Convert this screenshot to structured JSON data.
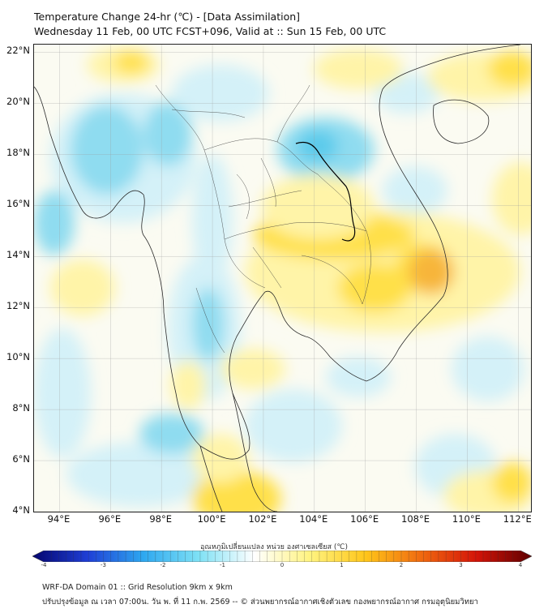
{
  "header": {
    "title_line1": "Temperature Change 24-hr (℃) - [Data Assimilation]",
    "title_line2": "Wednesday 11 Feb, 00 UTC FCST+096, Valid at :: Sun 15 Feb, 00 UTC"
  },
  "map": {
    "lat_labels": [
      "22°N",
      "20°N",
      "18°N",
      "16°N",
      "14°N",
      "12°N",
      "10°N",
      "8°N",
      "6°N",
      "4°N"
    ],
    "lon_labels": [
      "94°E",
      "96°E",
      "98°E",
      "100°E",
      "102°E",
      "104°E",
      "106°E",
      "108°E",
      "110°E",
      "112°E"
    ],
    "lat_range": [
      4,
      22.3
    ],
    "lon_range": [
      93,
      112.5
    ],
    "background_color": "#fbfbf2",
    "field_colors": {
      "warm_light": "#fff4a8",
      "warm_mid": "#ffe04a",
      "warm_strong": "#f7b53a",
      "cool_light": "#d4f1f8",
      "cool_mid": "#8fdcf0",
      "cool_strong": "#5ccbeb"
    }
  },
  "colorbar": {
    "label": "อุณหภูมิเปลี่ยนแปลง หน่วย องศาเซลเซียส (℃)",
    "tick_labels": [
      "-4",
      "-3",
      "-2",
      "-1",
      "0",
      "1",
      "2",
      "3",
      "4"
    ],
    "range": [
      -4,
      4
    ],
    "color_stops": [
      "#05056e",
      "#1f3fd6",
      "#2ea8f0",
      "#7fe1f5",
      "#ffffff",
      "#fff380",
      "#ffc61a",
      "#f06a10",
      "#d41408",
      "#5e0000"
    ]
  },
  "footer": {
    "line1": "WRF-DA Domain 01 :: Grid Resolution 9km x 9km",
    "line2": "ปรับปรุงข้อมูล ณ เวลา 07:00น. วัน พ. ที่ 11 ก.พ. 2569 -- © ส่วนพยากรณ์อากาศเชิงตัวเลข กองพยากรณ์อากาศ กรมอุตุนิยมวิทยา"
  }
}
